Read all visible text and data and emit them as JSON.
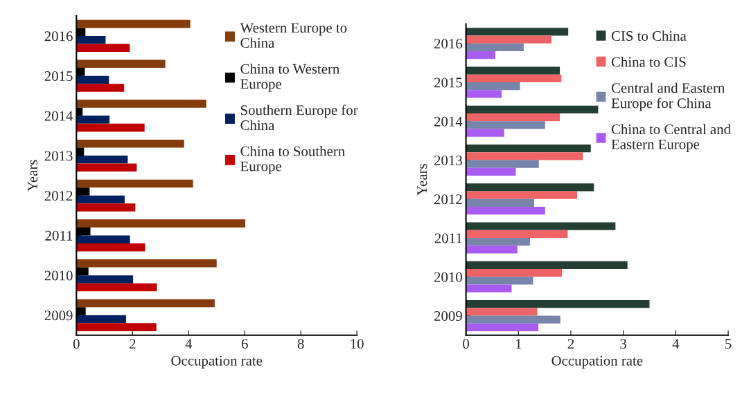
{
  "chart_data": [
    {
      "type": "bar",
      "orientation": "horizontal",
      "xlabel": "Occupation rate",
      "ylabel": "Years",
      "categories": [
        "2016",
        "2015",
        "2014",
        "2013",
        "2012",
        "2011",
        "2010",
        "2009"
      ],
      "xlim": [
        0,
        10
      ],
      "xticks": [
        0,
        2,
        4,
        6,
        8,
        10
      ],
      "legend": "top right",
      "series": [
        {
          "name": "Western Europe to China",
          "color": "#843c0c",
          "values": [
            4.06,
            3.17,
            4.63,
            3.84,
            4.16,
            6.02,
            5.0,
            4.93
          ]
        },
        {
          "name": "China to Western Europe",
          "color": "#000000",
          "values": [
            0.32,
            0.3,
            0.22,
            0.27,
            0.47,
            0.5,
            0.43,
            0.33
          ]
        },
        {
          "name": "Southern Europe for China",
          "color": "#002060",
          "values": [
            1.04,
            1.16,
            1.18,
            1.83,
            1.72,
            1.91,
            2.02,
            1.77
          ]
        },
        {
          "name": "China to Southern Europe",
          "color": "#c00000",
          "values": [
            1.9,
            1.7,
            2.43,
            2.15,
            2.1,
            2.45,
            2.87,
            2.85
          ]
        }
      ]
    },
    {
      "type": "bar",
      "orientation": "horizontal",
      "xlabel": "Occupation rate",
      "ylabel": "Years",
      "categories": [
        "2016",
        "2015",
        "2014",
        "2013",
        "2012",
        "2011",
        "2010",
        "2009"
      ],
      "xlim": [
        0,
        5
      ],
      "xticks": [
        0,
        1,
        2,
        3,
        4,
        5
      ],
      "legend": "top right",
      "series": [
        {
          "name": "CIS to China",
          "color": "#233e33",
          "values": [
            1.95,
            1.79,
            2.52,
            2.38,
            2.44,
            2.85,
            3.08,
            3.5
          ]
        },
        {
          "name": "China to CIS",
          "color": "#ee6366",
          "values": [
            1.63,
            1.82,
            1.79,
            2.23,
            2.12,
            1.94,
            1.83,
            1.36
          ]
        },
        {
          "name": "Central and Eastern Europe for China",
          "color": "#7785ab",
          "values": [
            1.1,
            1.03,
            1.51,
            1.39,
            1.3,
            1.22,
            1.28,
            1.8
          ]
        },
        {
          "name": "China to Central and Eastern Europe",
          "color": "#a95cf2",
          "values": [
            0.56,
            0.68,
            0.73,
            0.95,
            1.51,
            0.98,
            0.87,
            1.38
          ]
        }
      ]
    }
  ]
}
